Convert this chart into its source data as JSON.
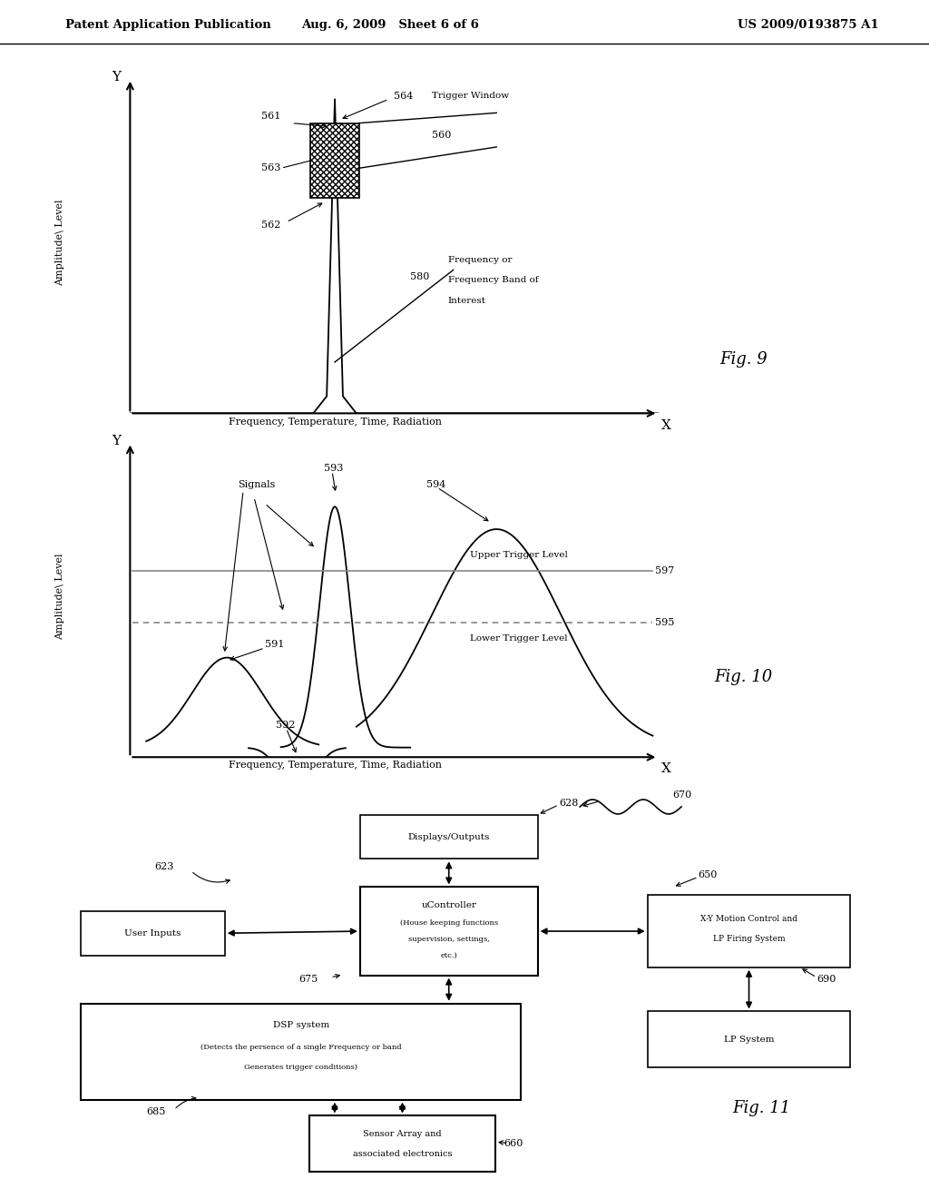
{
  "bg_color": "#ffffff",
  "header_left": "Patent Application Publication",
  "header_mid": "Aug. 6, 2009   Sheet 6 of 6",
  "header_right": "US 2009/0193875 A1"
}
